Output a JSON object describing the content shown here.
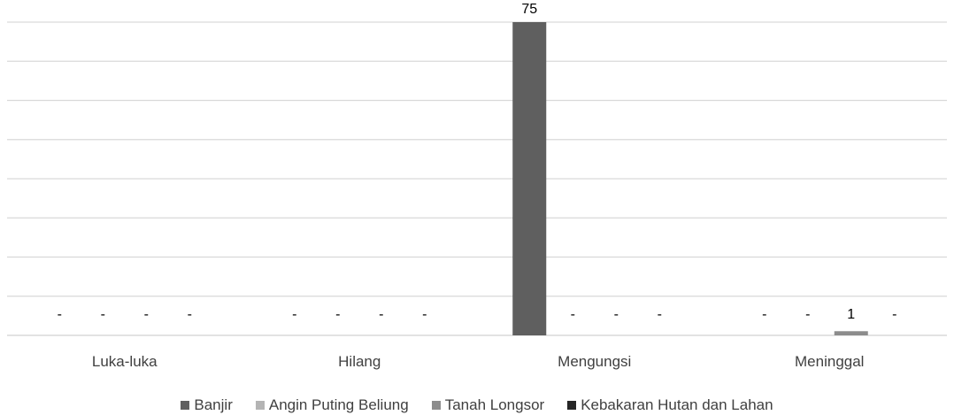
{
  "chart_data": {
    "type": "bar",
    "categories": [
      "Luka-luka",
      "Hilang",
      "Mengungsi",
      "Meninggal"
    ],
    "series": [
      {
        "name": "Banjir",
        "color": "#5f5f5f",
        "values": [
          0,
          0,
          75,
          0
        ],
        "labels": [
          "-",
          "-",
          "75",
          "-"
        ]
      },
      {
        "name": "Angin Puting Beliung",
        "color": "#b4b4b4",
        "values": [
          0,
          0,
          0,
          0
        ],
        "labels": [
          "-",
          "-",
          "-",
          "-"
        ]
      },
      {
        "name": "Tanah Longsor",
        "color": "#8c8c8c",
        "values": [
          0,
          0,
          0,
          1
        ],
        "labels": [
          "-",
          "-",
          "-",
          "1"
        ]
      },
      {
        "name": "Kebakaran Hutan dan Lahan",
        "color": "#262626",
        "values": [
          0,
          0,
          0,
          0
        ],
        "labels": [
          "-",
          "-",
          "-",
          "-"
        ]
      }
    ],
    "ylim": [
      0,
      75
    ],
    "grid": true,
    "legend_position": "bottom"
  }
}
